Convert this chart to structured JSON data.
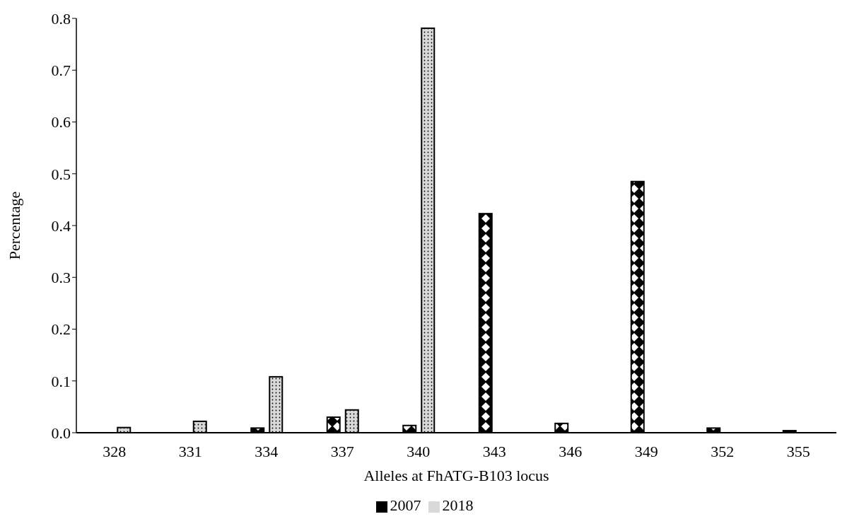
{
  "chart_data": {
    "type": "bar",
    "xlabel": "Alleles at FhATG-B103 locus",
    "ylabel": "Percentage",
    "categories": [
      "328",
      "331",
      "334",
      "337",
      "340",
      "343",
      "346",
      "349",
      "352",
      "355"
    ],
    "series": [
      {
        "name": "2007",
        "color": "#000000",
        "values": [
          null,
          null,
          0.009,
          0.03,
          0.014,
          0.423,
          0.018,
          0.485,
          0.009,
          0.004
        ]
      },
      {
        "name": "2018",
        "color": "#d9d9d9",
        "values": [
          0.01,
          0.022,
          0.108,
          0.044,
          0.781,
          null,
          null,
          null,
          null,
          null
        ]
      }
    ],
    "ylim": [
      0,
      0.8
    ],
    "yticks": [
      {
        "value": 0,
        "label": "0.0"
      },
      0.1,
      0.2,
      0.3,
      0.4,
      0.5,
      0.6,
      0.7,
      0.8
    ],
    "grid": false,
    "legend": "bottom"
  }
}
